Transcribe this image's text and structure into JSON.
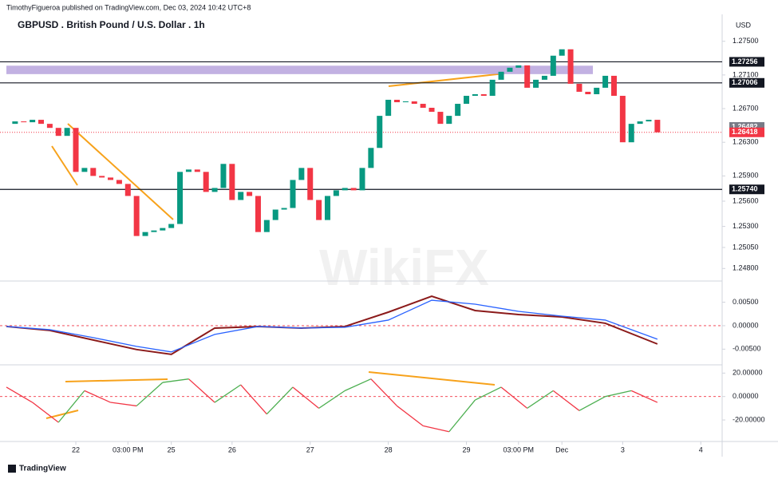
{
  "header": {
    "byline": "TimothyFigueroa published on TradingView.com, Dec 03, 2024 10:42 UTC+8",
    "title": "GBPUSD . British Pound / U.S. Dollar . 1h",
    "currency": "USD",
    "brand": "TradingView",
    "watermark": "WikiFX"
  },
  "chart_data": [
    {
      "type": "candlestick",
      "pane": "price",
      "close": [
        1.26519,
        1.26548,
        1.26538,
        1.26567,
        1.26519,
        1.26471,
        1.26376,
        1.26471,
        1.25948,
        1.25995,
        1.259,
        1.25881,
        1.25852,
        1.25805,
        1.25662,
        1.25186,
        1.25233,
        1.25252,
        1.25281,
        1.25329,
        1.25948,
        1.25976,
        1.25948,
        1.2571,
        1.25757,
        1.26043,
        1.25614,
        1.2571,
        1.25662,
        1.25233,
        1.25376,
        1.255,
        1.25519,
        1.25852,
        1.25995,
        1.25614,
        1.25376,
        1.25662,
        1.25729,
        1.25757,
        1.25729,
        1.25995,
        1.26233,
        1.26614,
        1.26805,
        1.26776,
        1.26786,
        1.26757,
        1.2671,
        1.26662,
        1.26519,
        1.26614,
        1.26757,
        1.26852,
        1.26871,
        1.26852,
        1.27043,
        1.27138,
        1.27186,
        1.27214,
        1.26948,
        1.27043,
        1.2709,
        1.27329,
        1.27405,
        1.26995,
        1.269,
        1.26871,
        1.26948,
        1.2709,
        1.26852,
        1.263,
        1.26519,
        1.26548,
        1.26567,
        1.26418
      ],
      "up_color": "#089981",
      "down_color": "#f23645",
      "xlim": [
        0,
        82
      ],
      "xticks": [
        {
          "value": 8,
          "label": "22"
        },
        {
          "value": 14,
          "label": "03:00 PM"
        },
        {
          "value": 19,
          "label": "25"
        },
        {
          "value": 26,
          "label": "26"
        },
        {
          "value": 35,
          "label": "27"
        },
        {
          "value": 44,
          "label": "28"
        },
        {
          "value": 53,
          "label": "29"
        },
        {
          "value": 59,
          "label": "03:00 PM"
        },
        {
          "value": 64,
          "label": "Dec"
        },
        {
          "value": 71,
          "label": "3"
        },
        {
          "value": 80,
          "label": "4"
        }
      ],
      "ylim": [
        1.2467,
        1.2782
      ],
      "yticks": [
        {
          "value": 1.275,
          "label": "1.27500"
        },
        {
          "value": 1.271,
          "label": "1.27100"
        },
        {
          "value": 1.267,
          "label": "1.26700"
        },
        {
          "value": 1.263,
          "label": "1.26300"
        },
        {
          "value": 1.259,
          "label": "1.25900"
        },
        {
          "value": 1.256,
          "label": "1.25600"
        },
        {
          "value": 1.253,
          "label": "1.25300"
        },
        {
          "value": 1.2505,
          "label": "1.25050"
        },
        {
          "value": 1.248,
          "label": "1.24800"
        }
      ],
      "levels": [
        1.27256,
        1.27006,
        {
          "value": 1.2574,
          "label": "1.25740"
        }
      ],
      "zone": [
        1.2711,
        1.2721
      ],
      "zone_color": "#b39ddb",
      "last_prices": [
        {
          "value": 1.26482,
          "color": "#787b86"
        },
        {
          "value": 1.26418,
          "color": "#f23645"
        }
      ]
    },
    {
      "type": "line",
      "pane": "macd",
      "xlim": [
        0,
        82
      ],
      "x": [
        0,
        5,
        10,
        15,
        19,
        24,
        29,
        34,
        39,
        44,
        49,
        54,
        59,
        64,
        69,
        75
      ],
      "series": [
        {
          "color": "#8b1a1a",
          "values": [
            -0.00017,
            -0.00102,
            -0.00305,
            -0.00508,
            -0.0061,
            -0.00051,
            -0.00017,
            -0.00051,
            -0.00017,
            0.00288,
            0.00627,
            0.00322,
            0.00237,
            0.00186,
            0.00051,
            -0.0039
          ]
        },
        {
          "color": "#2962ff",
          "values": [
            -0.00017,
            -0.00085,
            -0.00254,
            -0.00441,
            -0.00559,
            -0.00186,
            -0.00017,
            -0.00051,
            -0.00034,
            0.00119,
            0.00542,
            0.00458,
            0.00305,
            0.00203,
            0.00119,
            -0.00288
          ]
        }
      ],
      "ylim": [
        -0.008,
        0.009
      ],
      "yticks": [
        {
          "value": 0.005,
          "label": "0.00500"
        },
        {
          "value": 0,
          "label": "0.00000"
        },
        {
          "value": -0.005,
          "label": "-0.00500"
        }
      ]
    },
    {
      "type": "line",
      "pane": "oscillator",
      "xlim": [
        0,
        82
      ],
      "x": [
        0,
        3,
        6,
        9,
        12,
        15,
        18,
        21,
        24,
        27,
        30,
        33,
        36,
        39,
        42,
        45,
        48,
        51,
        54,
        57,
        60,
        63,
        66,
        69,
        72,
        75
      ],
      "values": [
        8,
        -5,
        -22,
        5,
        -5,
        -8,
        12,
        15,
        -5,
        10,
        -15,
        8,
        -10,
        5,
        15,
        -8,
        -25,
        -30,
        -3,
        8,
        -10,
        5,
        -12,
        0,
        5,
        -5
      ],
      "up_color": "#4caf50",
      "down_color": "#f23645",
      "ylim": [
        -37,
        25
      ],
      "yticks": [
        {
          "value": 20,
          "label": "20.00000"
        },
        {
          "value": 0,
          "label": "0.00000"
        },
        {
          "value": -20,
          "label": "-20.00000"
        }
      ]
    }
  ]
}
